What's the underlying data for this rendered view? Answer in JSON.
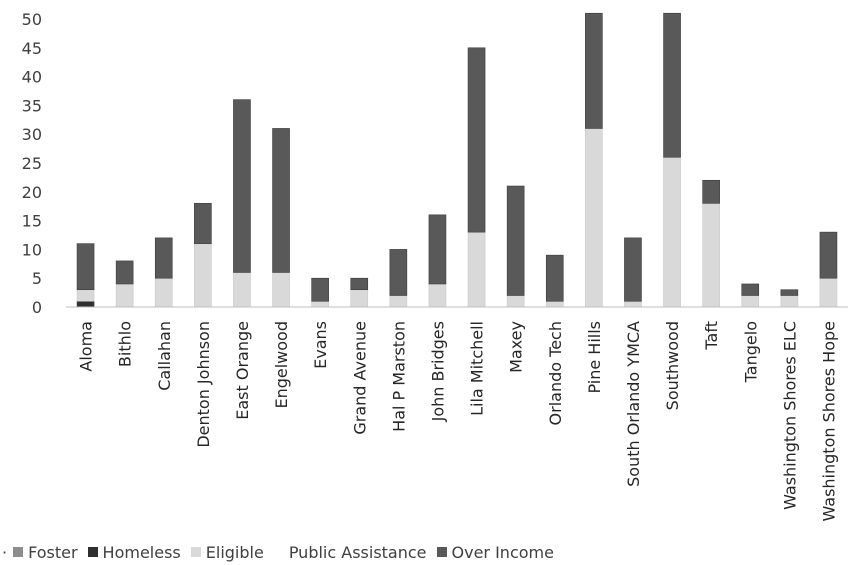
{
  "chart_data": {
    "type": "bar",
    "stacked": true,
    "title": "",
    "xlabel": "",
    "ylabel": "",
    "ylim": [
      0,
      50
    ],
    "yticks": [
      0,
      5,
      10,
      15,
      20,
      25,
      30,
      35,
      40,
      45,
      50
    ],
    "grid": false,
    "legend_position": "bottom",
    "categories": [
      "Aloma",
      "Bithlo",
      "Callahan",
      "Denton Johnson",
      "East Orange",
      "Engelwood",
      "Evans",
      "Grand Avenue",
      "Hal P Marston",
      "John Bridges",
      "Lila Mitchell",
      "Maxey",
      "Orlando Tech",
      "Pine Hills",
      "South Orlando YMCA",
      "Southwood",
      "Taft",
      "Tangelo",
      "Washington Shores ELC",
      "Washington Shores Hope"
    ],
    "series": [
      {
        "name": "Foster",
        "color": "#8c8c8c",
        "values": [
          0,
          0,
          0,
          0,
          0,
          0,
          0,
          0,
          0,
          0,
          0,
          0,
          0,
          0,
          0,
          0,
          0,
          0,
          0,
          0
        ]
      },
      {
        "name": "Homeless",
        "color": "#2f2f2f",
        "values": [
          1,
          0,
          0,
          0,
          0,
          0,
          0,
          0,
          0,
          0,
          0,
          0,
          0,
          0,
          0,
          0,
          0,
          0,
          0,
          0
        ]
      },
      {
        "name": "Eligible",
        "color": "#d9d9d9",
        "values": [
          2,
          4,
          5,
          11,
          6,
          6,
          1,
          3,
          2,
          4,
          13,
          2,
          1,
          31,
          1,
          26,
          18,
          2,
          2,
          5
        ]
      },
      {
        "name": "Public Assistance",
        "color": "#ececec",
        "values": [
          0,
          0,
          0,
          0,
          0,
          0,
          0,
          0,
          0,
          0,
          0,
          0,
          0,
          0,
          0,
          0,
          0,
          0,
          0,
          0
        ]
      },
      {
        "name": "Over Income",
        "color": "#595959",
        "values": [
          8,
          4,
          7,
          7,
          30,
          25,
          4,
          2,
          8,
          12,
          32,
          19,
          8,
          20,
          11,
          25,
          4,
          2,
          1,
          8
        ]
      }
    ]
  },
  "legend_prefix": "·"
}
